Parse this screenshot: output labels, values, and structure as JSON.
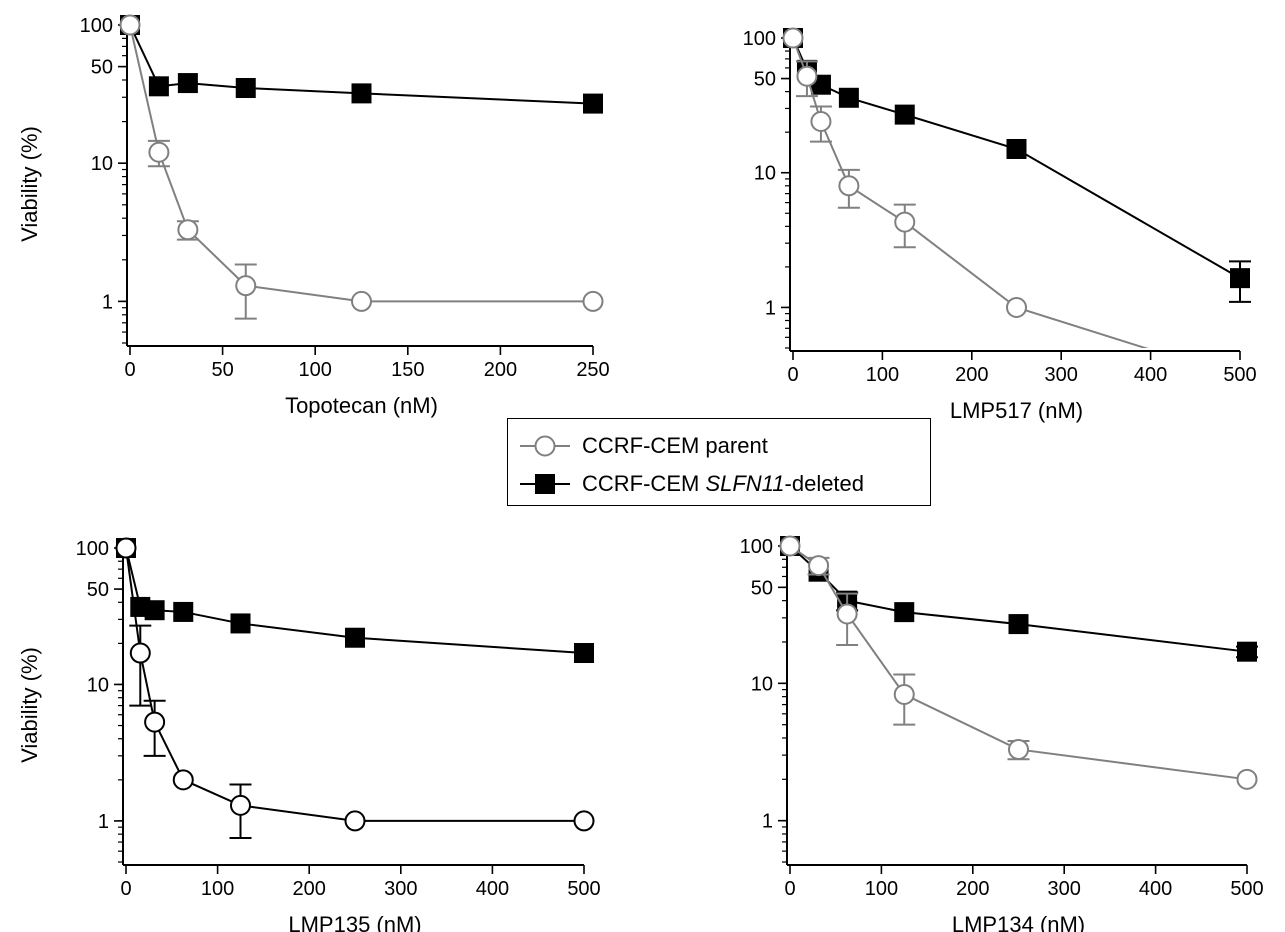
{
  "colors": {
    "parent": "#808080",
    "deleted": "#000000",
    "panel3_parent": "#000000",
    "axis": "#000000"
  },
  "legend": {
    "entry_parent": "CCRF-CEM parent",
    "entry_deleted_prefix": "CCRF-CEM ",
    "entry_deleted_gene": "SLFN11",
    "entry_deleted_suffix": "-deleted"
  },
  "chart_data": [
    {
      "type": "line",
      "xlabel": "Topotecan (nM)",
      "ylabel": "Viability (%)",
      "xlim": [
        0,
        250
      ],
      "xticks": [
        0,
        50,
        100,
        150,
        200,
        250
      ],
      "ylim": [
        0.5,
        100
      ],
      "yscale": "log",
      "yticks": [
        1,
        10,
        50,
        100
      ],
      "grid": false,
      "series": [
        {
          "name": "CCRF-CEM parent",
          "marker": "circle-open",
          "color": "#808080",
          "x": [
            0,
            15.6,
            31.25,
            62.5,
            125,
            250
          ],
          "y": [
            100,
            12,
            3.3,
            1.3,
            1.0,
            1.0
          ],
          "err": [
            0,
            2.5,
            0.5,
            0.55,
            0,
            0
          ]
        },
        {
          "name": "CCRF-CEM SLFN11-deleted",
          "marker": "square-filled",
          "color": "#000000",
          "x": [
            0,
            15.6,
            31.25,
            62.5,
            125,
            250
          ],
          "y": [
            100,
            36,
            38,
            35,
            32,
            27
          ],
          "err": [
            0,
            0,
            0,
            0,
            0,
            0
          ]
        }
      ]
    },
    {
      "type": "line",
      "xlabel": "LMP517 (nM)",
      "ylabel": "",
      "xlim": [
        0,
        500
      ],
      "xticks": [
        0,
        100,
        200,
        300,
        400,
        500
      ],
      "ylim": [
        0.5,
        100
      ],
      "yscale": "log",
      "yticks": [
        1,
        10,
        50,
        100
      ],
      "grid": false,
      "series": [
        {
          "name": "CCRF-CEM parent",
          "marker": "circle-open",
          "color": "#808080",
          "x": [
            0,
            15.6,
            31.25,
            62.5,
            125,
            250,
            500
          ],
          "y": [
            100,
            52,
            24,
            8,
            4.3,
            1.0,
            0.3
          ],
          "err": [
            0,
            15,
            7,
            2.5,
            1.5,
            0,
            0
          ]
        },
        {
          "name": "CCRF-CEM SLFN11-deleted",
          "marker": "square-filled",
          "color": "#000000",
          "x": [
            0,
            15.6,
            31.25,
            62.5,
            125,
            250,
            500
          ],
          "y": [
            100,
            58,
            45,
            36,
            27,
            15,
            1.65
          ],
          "err": [
            0,
            0,
            0,
            0,
            0,
            0,
            0.55
          ]
        }
      ]
    },
    {
      "type": "line",
      "xlabel": "LMP135 (nM)",
      "ylabel": "Viability (%)",
      "xlim": [
        0,
        500
      ],
      "xticks": [
        0,
        100,
        200,
        300,
        400,
        500
      ],
      "ylim": [
        0.5,
        100
      ],
      "yscale": "log",
      "yticks": [
        1,
        10,
        50,
        100
      ],
      "grid": false,
      "series": [
        {
          "name": "CCRF-CEM parent",
          "marker": "circle-open",
          "color": "#000000",
          "x": [
            0,
            15.6,
            31.25,
            62.5,
            125,
            250,
            500
          ],
          "y": [
            100,
            17,
            5.3,
            2.0,
            1.3,
            1.0,
            1.0
          ],
          "err": [
            0,
            10,
            2.3,
            0,
            0.55,
            0,
            0
          ]
        },
        {
          "name": "CCRF-CEM SLFN11-deleted",
          "marker": "square-filled",
          "color": "#000000",
          "x": [
            0,
            15.6,
            31.25,
            62.5,
            125,
            250,
            500
          ],
          "y": [
            100,
            37,
            35,
            34,
            28,
            22,
            17
          ],
          "err": [
            0,
            0,
            0,
            0,
            0,
            0,
            0
          ]
        }
      ]
    },
    {
      "type": "line",
      "xlabel": "LMP134 (nM)",
      "ylabel": "",
      "xlim": [
        0,
        500
      ],
      "xticks": [
        0,
        100,
        200,
        300,
        400,
        500
      ],
      "ylim": [
        0.5,
        100
      ],
      "yscale": "log",
      "yticks": [
        1,
        10,
        50,
        100
      ],
      "grid": false,
      "series": [
        {
          "name": "CCRF-CEM parent",
          "marker": "circle-open",
          "color": "#808080",
          "x": [
            0,
            31.25,
            62.5,
            125,
            250,
            500
          ],
          "y": [
            100,
            72,
            32,
            8.3,
            3.3,
            2.0
          ],
          "err": [
            0,
            10,
            13,
            3.3,
            0.5,
            0
          ]
        },
        {
          "name": "CCRF-CEM SLFN11-deleted",
          "marker": "square-filled",
          "color": "#000000",
          "x": [
            0,
            31.25,
            62.5,
            125,
            250,
            500
          ],
          "y": [
            100,
            65,
            40,
            33,
            27,
            17
          ],
          "err": [
            0,
            0,
            6,
            0,
            0,
            1.5
          ]
        }
      ]
    }
  ]
}
